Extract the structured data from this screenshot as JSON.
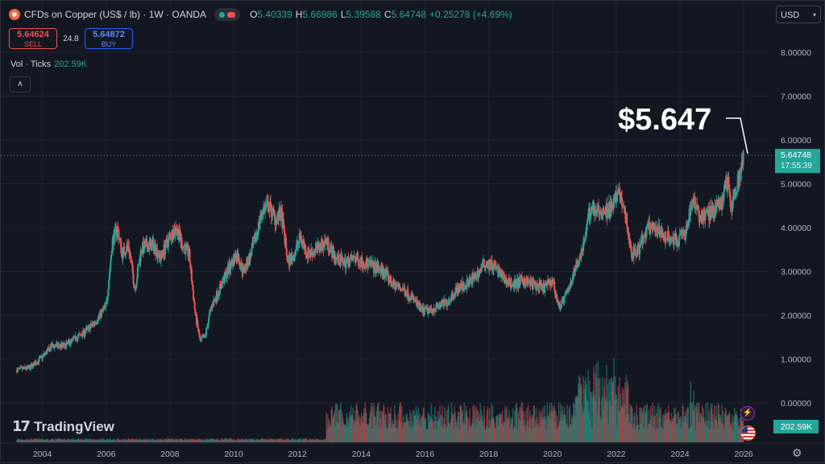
{
  "header": {
    "symbol_title": "CFDs on Copper (US$ / lb) · 1W · OANDA",
    "ohlc": [
      {
        "k": "O",
        "v": "5.40339"
      },
      {
        "k": "H",
        "v": "5.66986"
      },
      {
        "k": "L",
        "v": "5.39588"
      },
      {
        "k": "C",
        "v": "5.64748"
      },
      {
        "k": "",
        "v": "+0.25278 (+4.69%)"
      }
    ]
  },
  "trade": {
    "sell_price": "5.64624",
    "sell_label": "SELL",
    "spread": "24.8",
    "buy_price": "5.64872",
    "buy_label": "BUY"
  },
  "volume": {
    "label": "Vol · Ticks",
    "value": "202.59K",
    "badge": "202.59K"
  },
  "currency": {
    "label": "USD"
  },
  "brand": {
    "name": "TradingView",
    "mark": "17"
  },
  "price_tag": {
    "value": "5.64748",
    "countdown": "17:55:39"
  },
  "annotation": {
    "text": "$5.647"
  },
  "colors": {
    "up": "#26a69a",
    "down": "#ef5350",
    "bg": "#131722",
    "grid": "#1e222d",
    "text": "#d1d4dc"
  },
  "icons": {
    "collapse": "chevron-up-icon",
    "settings": "gear-icon",
    "lightning": "lightning-icon",
    "flag": "us-flag-icon"
  },
  "chart_data": {
    "type": "line",
    "title": "CFDs on Copper (US$ / lb)",
    "ylim": [
      -0.5,
      8.5
    ],
    "ytick_labels": [
      "0.00000",
      "1.00000",
      "2.00000",
      "3.00000",
      "4.00000",
      "5.00000",
      "6.00000",
      "7.00000",
      "8.00000"
    ],
    "xtick_labels": [
      "2004",
      "2006",
      "2008",
      "2010",
      "2012",
      "2014",
      "2016",
      "2018",
      "2020",
      "2022",
      "2024",
      "2026"
    ],
    "x": [
      2003.2,
      2003.6,
      2004.0,
      2004.3,
      2004.7,
      2005.0,
      2005.3,
      2005.6,
      2006.0,
      2006.2,
      2006.35,
      2006.5,
      2006.7,
      2006.9,
      2007.1,
      2007.3,
      2007.5,
      2007.7,
      2008.0,
      2008.2,
      2008.4,
      2008.6,
      2008.8,
      2008.95,
      2009.1,
      2009.3,
      2009.5,
      2009.8,
      2010.1,
      2010.3,
      2010.5,
      2010.7,
      2010.9,
      2011.1,
      2011.3,
      2011.5,
      2011.7,
      2011.9,
      2012.1,
      2012.3,
      2012.6,
      2012.9,
      2013.2,
      2013.5,
      2013.8,
      2014.1,
      2014.4,
      2014.7,
      2015.0,
      2015.3,
      2015.6,
      2015.9,
      2016.1,
      2016.4,
      2016.7,
      2017.0,
      2017.3,
      2017.6,
      2017.9,
      2018.2,
      2018.5,
      2018.8,
      2019.1,
      2019.4,
      2019.7,
      2020.0,
      2020.2,
      2020.4,
      2020.7,
      2021.0,
      2021.2,
      2021.5,
      2021.8,
      2022.1,
      2022.3,
      2022.5,
      2022.7,
      2023.0,
      2023.3,
      2023.6,
      2023.9,
      2024.2,
      2024.4,
      2024.6,
      2024.8,
      2025.1,
      2025.3,
      2025.5,
      2025.6,
      2025.75,
      2025.9,
      2026.0
    ],
    "close": [
      0.75,
      0.8,
      1.05,
      1.3,
      1.3,
      1.45,
      1.6,
      1.8,
      2.2,
      3.7,
      4.0,
      3.4,
      3.6,
      2.6,
      3.5,
      3.6,
      3.6,
      3.3,
      3.8,
      4.0,
      3.6,
      3.4,
      2.0,
      1.4,
      1.5,
      2.2,
      2.5,
      3.0,
      3.4,
      3.0,
      3.3,
      3.8,
      4.4,
      4.5,
      4.2,
      4.3,
      3.2,
      3.4,
      3.8,
      3.4,
      3.5,
      3.7,
      3.3,
      3.2,
      3.3,
      3.2,
      3.1,
      3.0,
      2.7,
      2.6,
      2.4,
      2.1,
      2.1,
      2.2,
      2.3,
      2.6,
      2.7,
      2.9,
      3.2,
      3.1,
      2.8,
      2.7,
      2.8,
      2.7,
      2.6,
      2.8,
      2.2,
      2.4,
      3.0,
      3.7,
      4.5,
      4.4,
      4.4,
      4.8,
      4.2,
      3.4,
      3.5,
      4.0,
      3.9,
      3.8,
      3.7,
      3.9,
      4.8,
      4.2,
      4.3,
      4.4,
      4.6,
      5.1,
      4.4,
      4.9,
      5.3,
      5.65
    ],
    "last_price": 5.64748
  }
}
